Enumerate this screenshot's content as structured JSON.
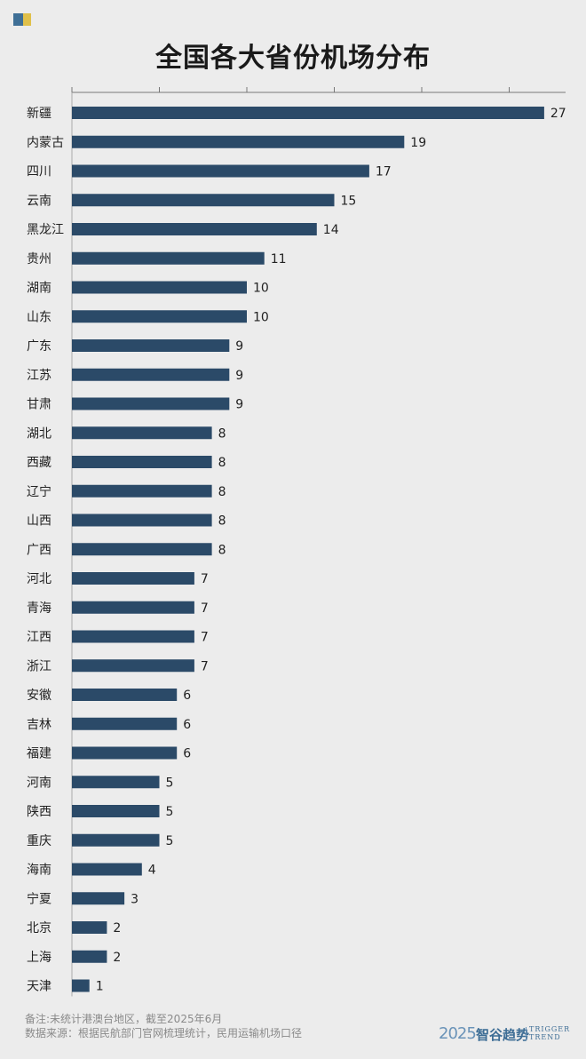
{
  "page": {
    "title": "全国各大省份机场分布",
    "note": "备注:未统计港澳台地区，截至2025年6月",
    "source": "数据来源：根据民航部门官网梳理统计，民用运输机场口径",
    "brand": {
      "year": "2025",
      "name_cn": "智谷趋势",
      "name_en_line1": "TRIGGER",
      "name_en_line2": "TREND"
    },
    "colors": {
      "bar": "#2b4a68",
      "accent_blue": "#3f6f96",
      "accent_yellow": "#e0c04a"
    }
  },
  "chart_data": {
    "type": "bar",
    "orientation": "horizontal",
    "title": "全国各大省份机场分布",
    "categories": [
      "新疆",
      "内蒙古",
      "四川",
      "云南",
      "黑龙江",
      "贵州",
      "湖南",
      "山东",
      "广东",
      "江苏",
      "甘肃",
      "湖北",
      "西藏",
      "辽宁",
      "山西",
      "广西",
      "河北",
      "青海",
      "江西",
      "浙江",
      "安徽",
      "吉林",
      "福建",
      "河南",
      "陕西",
      "重庆",
      "海南",
      "宁夏",
      "北京",
      "上海",
      "天津"
    ],
    "values": [
      27,
      19,
      17,
      15,
      14,
      11,
      10,
      10,
      9,
      9,
      9,
      8,
      8,
      8,
      8,
      8,
      7,
      7,
      7,
      7,
      6,
      6,
      6,
      5,
      5,
      5,
      4,
      3,
      2,
      2,
      1
    ],
    "xlim": [
      0,
      28
    ],
    "axis_ticks": [
      0,
      5,
      10,
      15,
      20,
      25
    ],
    "tick_labels_shown": false,
    "data_labels": true,
    "grid": false,
    "legend": "none"
  }
}
